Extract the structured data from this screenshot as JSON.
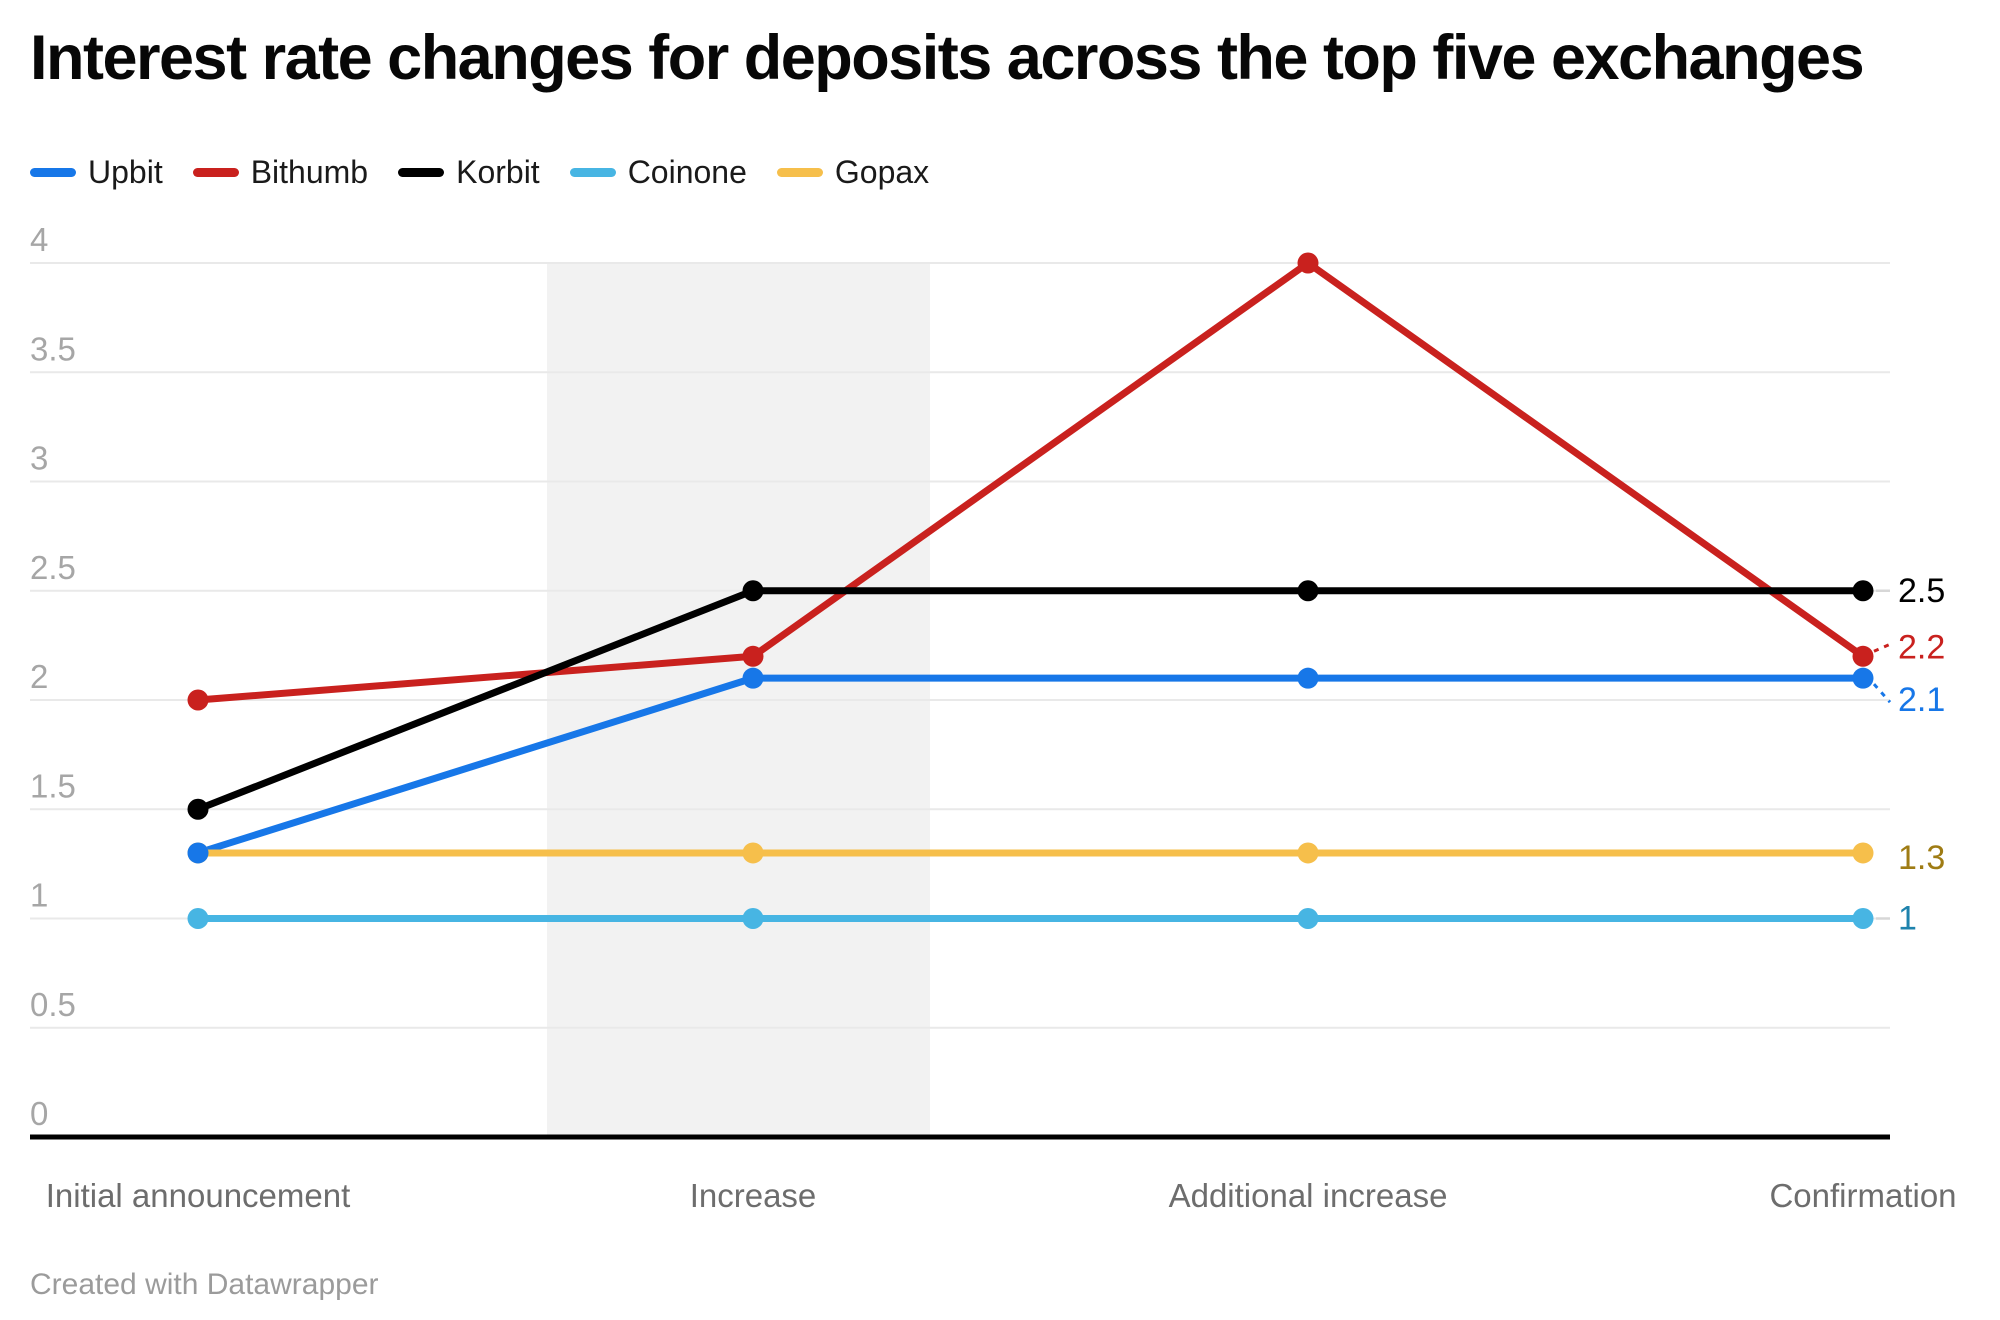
{
  "chart_data": {
    "type": "line",
    "title": "Interest rate changes for deposits across the top five exchanges",
    "categories": [
      "Initial announcement",
      "Increase",
      "Additional increase",
      "Confirmation"
    ],
    "series": [
      {
        "name": "Upbit",
        "color": "#1777e8",
        "label_color": "#1777e8",
        "values": [
          1.3,
          2.1,
          2.1,
          2.1
        ],
        "end_label": "2.1"
      },
      {
        "name": "Bithumb",
        "color": "#c9211e",
        "label_color": "#c9211e",
        "values": [
          2.0,
          2.2,
          4.0,
          2.2
        ],
        "end_label": "2.2"
      },
      {
        "name": "Korbit",
        "color": "#000000",
        "label_color": "#000000",
        "values": [
          1.5,
          2.5,
          2.5,
          2.5
        ],
        "end_label": "2.5"
      },
      {
        "name": "Coinone",
        "color": "#47b5e3",
        "label_color": "#1e83ad",
        "values": [
          1.0,
          1.0,
          1.0,
          1.0
        ],
        "end_label": "1"
      },
      {
        "name": "Gopax",
        "color": "#f6bf4b",
        "label_color": "#9f7c14",
        "values": [
          1.3,
          1.3,
          1.3,
          1.3
        ],
        "end_label": "1.3"
      }
    ],
    "ylim": [
      0,
      4
    ],
    "yticks": [
      0,
      0.5,
      1,
      1.5,
      2,
      2.5,
      3,
      3.5,
      4
    ],
    "ytick_labels": [
      "0",
      "0.5",
      "1",
      "1.5",
      "2",
      "2.5",
      "3",
      "3.5",
      "4"
    ],
    "grid": true,
    "legend_position": "top",
    "highlight_band_category": "Increase",
    "colors": {
      "grid": "#e9e9e9",
      "axis": "#000000",
      "band": "#f2f2f2",
      "y_tick_text": "#a6a6a6",
      "x_tick_text": "#6d6d6d"
    }
  },
  "footer": {
    "attribution": "Created with Datawrapper"
  }
}
